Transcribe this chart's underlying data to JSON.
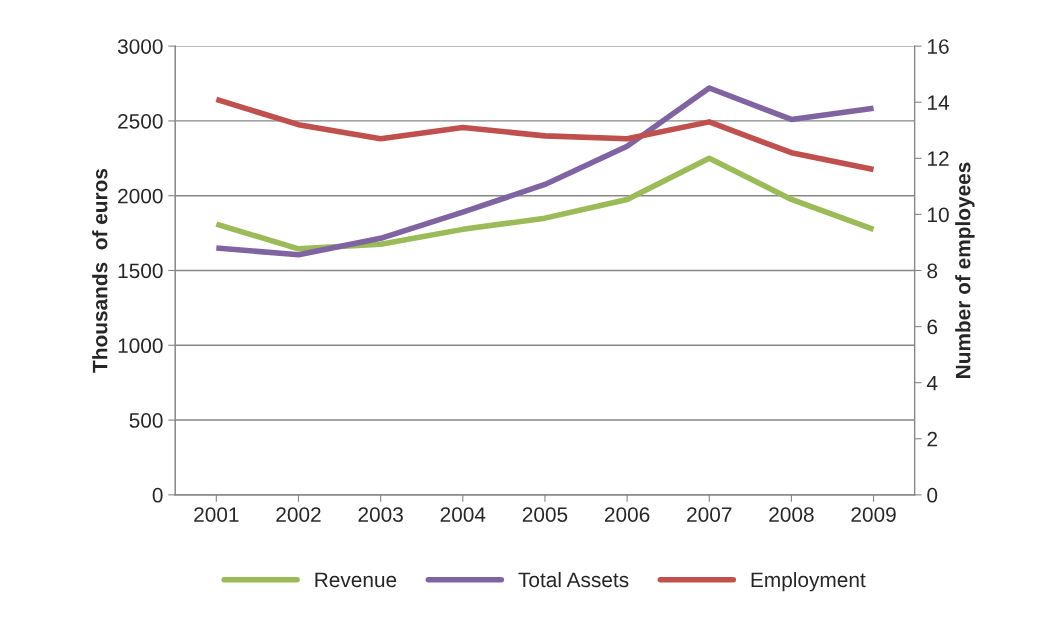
{
  "chart_data": {
    "type": "line",
    "ylabel": "Thousands  of euros",
    "y2label": "Number of employees",
    "categories": [
      "2001",
      "2002",
      "2003",
      "2004",
      "2005",
      "2006",
      "2007",
      "2008",
      "2009"
    ],
    "series": [
      {
        "name": "Revenue",
        "color": "#9bbb59",
        "values": [
          1810,
          1645,
          1675,
          1775,
          1850,
          1975,
          2250,
          1975,
          1775
        ]
      },
      {
        "name": "Total Assets",
        "color": "#8064a2",
        "values": [
          1650,
          1605,
          1715,
          1890,
          2075,
          2330,
          2720,
          2510,
          2585
        ]
      },
      {
        "name": "Employment",
        "color": "#c0504d",
        "axis": "y2",
        "values": [
          14.1,
          13.2,
          12.7,
          13.1,
          12.8,
          12.7,
          13.3,
          12.2,
          11.6
        ]
      }
    ],
    "ylim": [
      0,
      3000
    ],
    "yticks": [
      0,
      500,
      1000,
      1500,
      2000,
      2500,
      3000
    ],
    "y2lim": [
      0,
      16
    ],
    "y2ticks": [
      0,
      2,
      4,
      6,
      8,
      10,
      12,
      14,
      16
    ],
    "grid": "y",
    "legend": "bottom",
    "line_style": "solid",
    "marker": "none"
  }
}
